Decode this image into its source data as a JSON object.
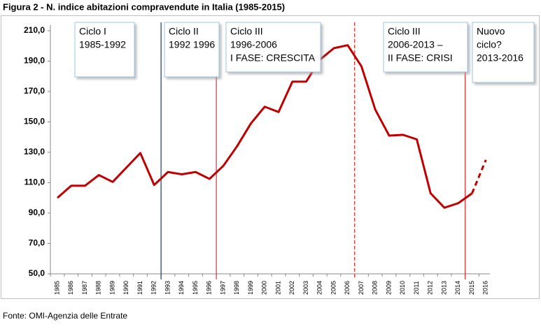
{
  "chart_data": {
    "type": "line",
    "title": "Figura 2 - N. indice abitazioni compravendute in Italia (1985-2015)",
    "source": "Fonte: OMI-Agenzia delle Entrate",
    "categories": [
      "1985",
      "1986",
      "1987",
      "1988",
      "1989",
      "1990",
      "1991",
      "1992",
      "1993",
      "1994",
      "1995",
      "1996",
      "1997",
      "1998",
      "1999",
      "2000",
      "2001",
      "2002",
      "2003",
      "2004",
      "2005",
      "2006",
      "2007",
      "2008",
      "2009",
      "2010",
      "2011",
      "2012",
      "2013",
      "2014",
      "2015",
      "2016"
    ],
    "series": [
      {
        "color": "#c00000",
        "line_style": "solid",
        "values": [
          100,
          108,
          108,
          115,
          110.5,
          120,
          129.5,
          108.5,
          117,
          115.5,
          117,
          112.5,
          121,
          134,
          149,
          160,
          156.5,
          176.5,
          176.5,
          191,
          198.5,
          200.5,
          186.5,
          158,
          141,
          141.5,
          138.5,
          103,
          93.5,
          96.5,
          103,
          null
        ]
      },
      {
        "color": "#c00000",
        "line_style": "dashed",
        "values": [
          null,
          null,
          null,
          null,
          null,
          null,
          null,
          null,
          null,
          null,
          null,
          null,
          null,
          null,
          null,
          null,
          null,
          null,
          null,
          null,
          null,
          null,
          null,
          null,
          null,
          null,
          null,
          null,
          null,
          null,
          103,
          125
        ]
      }
    ],
    "ylim": [
      50,
      210
    ],
    "yticks": [
      {
        "value": 50,
        "label": "50,0"
      },
      {
        "value": 70,
        "label": "70,0"
      },
      {
        "value": 90,
        "label": "90,0"
      },
      {
        "value": 110,
        "label": "110,0"
      },
      {
        "value": 130,
        "label": "130,0"
      },
      {
        "value": 150,
        "label": "150,0"
      },
      {
        "value": 170,
        "label": "170,0"
      },
      {
        "value": 190,
        "label": "190,0"
      },
      {
        "value": 210,
        "label": "210,0"
      }
    ],
    "vlines": [
      {
        "at": "1993",
        "color": "#1f3864",
        "line_style": "solid"
      },
      {
        "at": "1997",
        "color": "#e03030",
        "line_style": "solid"
      },
      {
        "at": "2007",
        "color": "#e03030",
        "line_style": "dashed"
      },
      {
        "at": "2015",
        "color": "#e03030",
        "line_style": "solid"
      }
    ],
    "annotations": [
      {
        "lines": [
          "Ciclo I",
          "1985-1992"
        ]
      },
      {
        "lines": [
          "Ciclo II",
          "1992 1996"
        ]
      },
      {
        "lines": [
          "Ciclo III",
          "1996-2006",
          "I FASE: CRESCITA"
        ]
      },
      {
        "lines": [
          "Ciclo III",
          "2006-2013 –",
          "II FASE: CRISI"
        ]
      },
      {
        "lines": [
          "Nuovo",
          "ciclo?",
          "2013-2016"
        ]
      }
    ]
  }
}
